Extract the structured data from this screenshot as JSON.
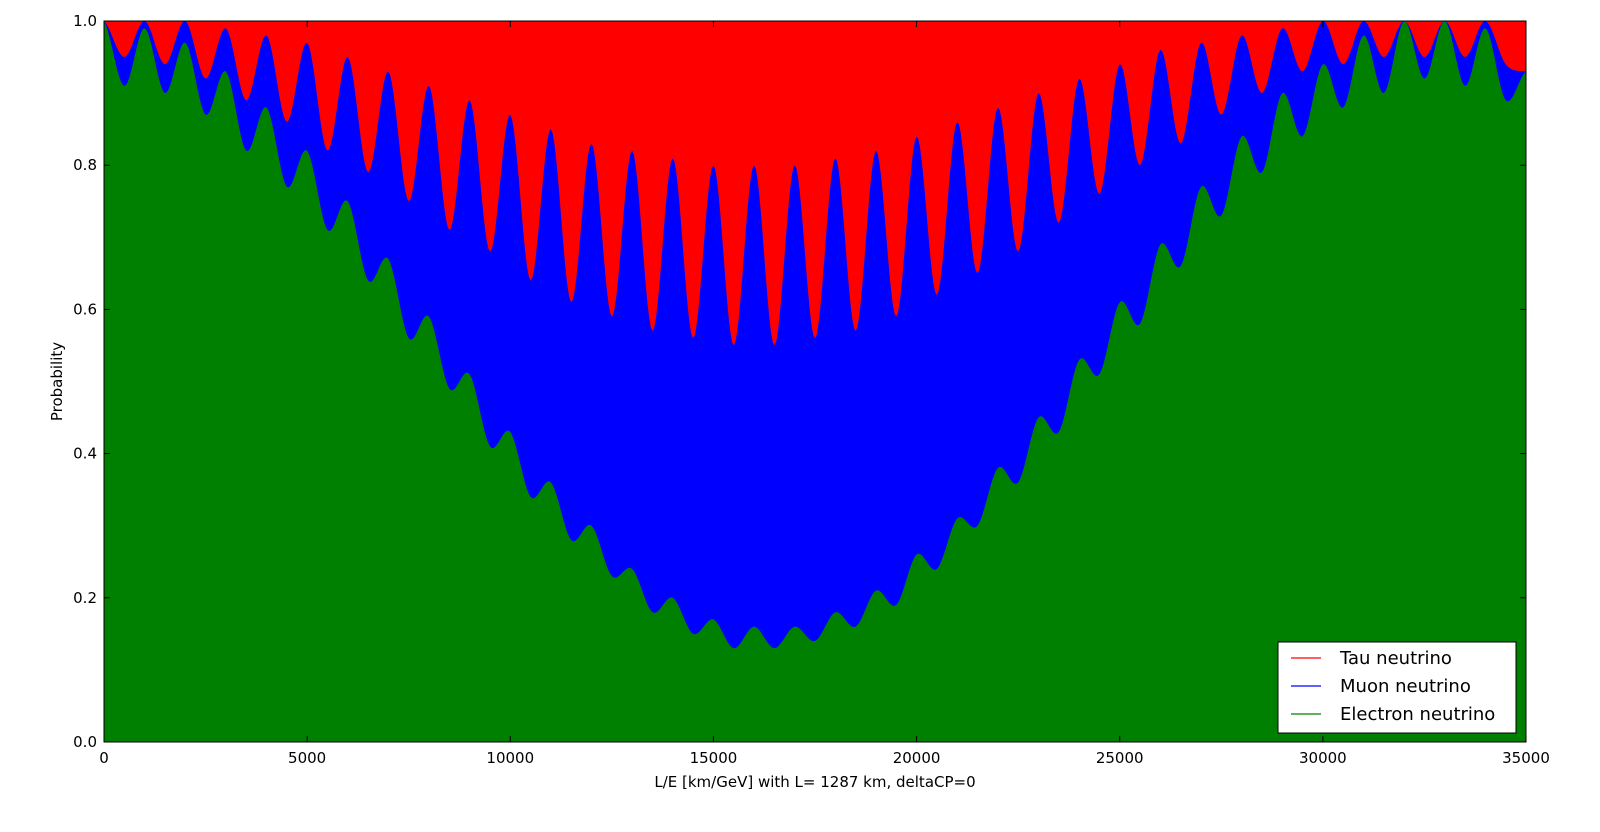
{
  "chart_data": {
    "type": "area",
    "title": "",
    "xlabel": "L/E [km/GeV]  with  L= 1287 km, deltaCP=0",
    "ylabel": "Probability",
    "xlim": [
      0,
      35000
    ],
    "ylim": [
      0,
      1.0
    ],
    "x_ticks": [
      0,
      5000,
      10000,
      15000,
      20000,
      25000,
      30000,
      35000
    ],
    "x_tick_labels": [
      "0",
      "5000",
      "10000",
      "15000",
      "20000",
      "25000",
      "30000",
      "35000"
    ],
    "y_ticks": [
      0,
      0.2,
      0.4,
      0.6,
      0.8,
      1.0
    ],
    "y_tick_labels": [
      "0.0",
      "0.2",
      "0.4",
      "0.6",
      "0.8",
      "1.0"
    ],
    "stacked": true,
    "legend_position": "bottom-right",
    "grid": false,
    "series": [
      {
        "name": "Tau neutrino",
        "color": "#ff0000",
        "note_top": "stacked top band filling from muon+electron boundary up to 1.0"
      },
      {
        "name": "Muon neutrino",
        "color": "#0000ff",
        "boundary_x": [
          0,
          500,
          1000,
          1500,
          2000,
          2500,
          3000,
          3500,
          4000,
          4500,
          5000,
          5500,
          6000,
          6500,
          7000,
          7500,
          8000,
          8500,
          9000,
          9500,
          10000,
          10500,
          11000,
          11500,
          12000,
          12500,
          13000,
          13500,
          14000,
          14500,
          15000,
          15500,
          16000,
          16500,
          17000,
          17500,
          18000,
          18500,
          19000,
          19500,
          20000,
          20500,
          21000,
          21500,
          22000,
          22500,
          23000,
          23500,
          24000,
          24500,
          25000,
          25500,
          26000,
          26500,
          27000,
          27500,
          28000,
          28500,
          29000,
          29500,
          30000,
          30500,
          31000,
          31500,
          32000,
          32500,
          33000,
          33500,
          34000,
          34500,
          35000
        ],
        "boundary_y": [
          1.0,
          0.95,
          1.0,
          0.94,
          1.0,
          0.92,
          0.99,
          0.89,
          0.98,
          0.86,
          0.97,
          0.82,
          0.95,
          0.79,
          0.93,
          0.75,
          0.91,
          0.71,
          0.89,
          0.68,
          0.87,
          0.64,
          0.85,
          0.61,
          0.83,
          0.59,
          0.82,
          0.57,
          0.81,
          0.56,
          0.8,
          0.55,
          0.8,
          0.55,
          0.8,
          0.56,
          0.81,
          0.57,
          0.82,
          0.59,
          0.84,
          0.62,
          0.86,
          0.65,
          0.88,
          0.68,
          0.9,
          0.72,
          0.92,
          0.76,
          0.94,
          0.8,
          0.96,
          0.83,
          0.97,
          0.87,
          0.98,
          0.9,
          0.99,
          0.93,
          1.0,
          0.94,
          1.0,
          0.95,
          1.0,
          0.95,
          1.0,
          0.95,
          1.0,
          0.94,
          0.93
        ]
      },
      {
        "name": "Electron neutrino",
        "color": "#008000",
        "boundary_x": [
          0,
          500,
          1000,
          1500,
          2000,
          2500,
          3000,
          3500,
          4000,
          4500,
          5000,
          5500,
          6000,
          6500,
          7000,
          7500,
          8000,
          8500,
          9000,
          9500,
          10000,
          10500,
          11000,
          11500,
          12000,
          12500,
          13000,
          13500,
          14000,
          14500,
          15000,
          15500,
          16000,
          16500,
          17000,
          17500,
          18000,
          18500,
          19000,
          19500,
          20000,
          20500,
          21000,
          21500,
          22000,
          22500,
          23000,
          23500,
          24000,
          24500,
          25000,
          25500,
          26000,
          26500,
          27000,
          27500,
          28000,
          28500,
          29000,
          29500,
          30000,
          30500,
          31000,
          31500,
          32000,
          32500,
          33000,
          33500,
          34000,
          34500,
          35000
        ],
        "boundary_y": [
          1.0,
          0.91,
          0.99,
          0.9,
          0.97,
          0.87,
          0.93,
          0.82,
          0.88,
          0.77,
          0.82,
          0.71,
          0.75,
          0.64,
          0.67,
          0.56,
          0.59,
          0.49,
          0.51,
          0.41,
          0.43,
          0.34,
          0.36,
          0.28,
          0.3,
          0.23,
          0.24,
          0.18,
          0.2,
          0.15,
          0.17,
          0.13,
          0.16,
          0.13,
          0.16,
          0.14,
          0.18,
          0.16,
          0.21,
          0.19,
          0.26,
          0.24,
          0.31,
          0.3,
          0.38,
          0.36,
          0.45,
          0.43,
          0.53,
          0.51,
          0.61,
          0.58,
          0.69,
          0.66,
          0.77,
          0.73,
          0.84,
          0.79,
          0.9,
          0.84,
          0.94,
          0.88,
          0.98,
          0.9,
          1.0,
          0.92,
          1.0,
          0.91,
          0.99,
          0.89,
          0.93
        ]
      }
    ]
  }
}
